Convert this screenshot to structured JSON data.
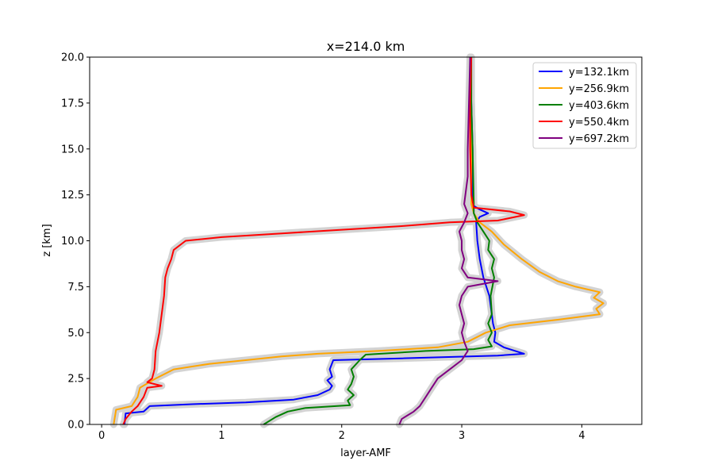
{
  "chart_data": {
    "type": "line",
    "title": "x=214.0 km",
    "xlabel": "layer-AMF",
    "ylabel": "z [km]",
    "xlim": [
      -0.1,
      4.5
    ],
    "ylim": [
      0,
      20
    ],
    "xticks": [
      0,
      1,
      2,
      3,
      4
    ],
    "yticks": [
      0.0,
      2.5,
      5.0,
      7.5,
      10.0,
      12.5,
      15.0,
      17.5,
      20.0
    ],
    "grid": false,
    "legend_position": "top-right",
    "shading": "light gray uncertainty band around each profile",
    "series": [
      {
        "name": "y=132.1km",
        "color": "#0000ff",
        "points": [
          [
            0.19,
            0.0
          ],
          [
            0.2,
            0.6
          ],
          [
            0.35,
            0.7
          ],
          [
            0.4,
            1.0
          ],
          [
            0.75,
            1.1
          ],
          [
            1.2,
            1.2
          ],
          [
            1.6,
            1.35
          ],
          [
            1.8,
            1.6
          ],
          [
            1.9,
            1.9
          ],
          [
            1.92,
            2.1
          ],
          [
            1.88,
            2.4
          ],
          [
            1.92,
            2.6
          ],
          [
            1.9,
            3.0
          ],
          [
            1.93,
            3.5
          ],
          [
            2.5,
            3.6
          ],
          [
            3.3,
            3.75
          ],
          [
            3.52,
            3.85
          ],
          [
            3.35,
            4.2
          ],
          [
            3.27,
            4.5
          ],
          [
            3.28,
            5.0
          ],
          [
            3.26,
            5.5
          ],
          [
            3.25,
            6.0
          ],
          [
            3.23,
            7.0
          ],
          [
            3.18,
            8.0
          ],
          [
            3.15,
            9.0
          ],
          [
            3.13,
            10.0
          ],
          [
            3.12,
            11.0
          ],
          [
            3.15,
            11.3
          ],
          [
            3.22,
            11.5
          ],
          [
            3.15,
            11.7
          ],
          [
            3.1,
            11.9
          ],
          [
            3.09,
            12.5
          ],
          [
            3.09,
            15.0
          ],
          [
            3.08,
            17.5
          ],
          [
            3.07,
            20.0
          ]
        ]
      },
      {
        "name": "y=256.9km",
        "color": "#ffa500",
        "points": [
          [
            0.1,
            0.0
          ],
          [
            0.12,
            0.8
          ],
          [
            0.25,
            1.0
          ],
          [
            0.3,
            1.5
          ],
          [
            0.32,
            2.0
          ],
          [
            0.45,
            2.5
          ],
          [
            0.6,
            3.0
          ],
          [
            0.9,
            3.3
          ],
          [
            1.2,
            3.5
          ],
          [
            1.5,
            3.7
          ],
          [
            1.8,
            3.85
          ],
          [
            2.3,
            4.0
          ],
          [
            2.8,
            4.2
          ],
          [
            3.05,
            4.5
          ],
          [
            3.2,
            5.0
          ],
          [
            3.4,
            5.4
          ],
          [
            3.8,
            5.7
          ],
          [
            4.15,
            6.0
          ],
          [
            4.12,
            6.3
          ],
          [
            4.18,
            6.6
          ],
          [
            4.1,
            6.9
          ],
          [
            4.15,
            7.2
          ],
          [
            3.95,
            7.5
          ],
          [
            3.8,
            7.8
          ],
          [
            3.65,
            8.3
          ],
          [
            3.5,
            9.0
          ],
          [
            3.35,
            9.8
          ],
          [
            3.25,
            10.5
          ],
          [
            3.15,
            11.0
          ],
          [
            3.1,
            11.5
          ],
          [
            3.08,
            12.0
          ],
          [
            3.08,
            15.0
          ],
          [
            3.07,
            17.5
          ],
          [
            3.07,
            20.0
          ]
        ]
      },
      {
        "name": "y=403.6km",
        "color": "#008000",
        "points": [
          [
            1.35,
            0.0
          ],
          [
            1.45,
            0.4
          ],
          [
            1.55,
            0.7
          ],
          [
            1.7,
            0.9
          ],
          [
            2.07,
            1.05
          ],
          [
            2.05,
            1.3
          ],
          [
            2.1,
            1.6
          ],
          [
            2.05,
            1.9
          ],
          [
            2.08,
            2.2
          ],
          [
            2.1,
            2.6
          ],
          [
            2.08,
            3.0
          ],
          [
            2.15,
            3.5
          ],
          [
            2.2,
            3.8
          ],
          [
            2.7,
            4.0
          ],
          [
            3.1,
            4.1
          ],
          [
            3.25,
            4.25
          ],
          [
            3.22,
            4.6
          ],
          [
            3.25,
            5.0
          ],
          [
            3.22,
            5.5
          ],
          [
            3.25,
            6.0
          ],
          [
            3.24,
            7.0
          ],
          [
            3.27,
            8.0
          ],
          [
            3.25,
            8.5
          ],
          [
            3.27,
            9.0
          ],
          [
            3.22,
            9.5
          ],
          [
            3.23,
            10.0
          ],
          [
            3.18,
            10.5
          ],
          [
            3.13,
            11.0
          ],
          [
            3.1,
            11.5
          ],
          [
            3.1,
            12.0
          ],
          [
            3.09,
            15.0
          ],
          [
            3.08,
            17.5
          ],
          [
            3.08,
            20.0
          ]
        ]
      },
      {
        "name": "y=550.4km",
        "color": "#ff0000",
        "points": [
          [
            0.18,
            0.0
          ],
          [
            0.2,
            0.3
          ],
          [
            0.25,
            0.7
          ],
          [
            0.3,
            1.0
          ],
          [
            0.35,
            1.5
          ],
          [
            0.38,
            2.0
          ],
          [
            0.5,
            2.1
          ],
          [
            0.38,
            2.3
          ],
          [
            0.42,
            2.5
          ],
          [
            0.44,
            3.0
          ],
          [
            0.45,
            4.0
          ],
          [
            0.48,
            5.0
          ],
          [
            0.5,
            6.0
          ],
          [
            0.52,
            7.0
          ],
          [
            0.53,
            8.0
          ],
          [
            0.55,
            8.5
          ],
          [
            0.58,
            9.0
          ],
          [
            0.6,
            9.5
          ],
          [
            0.7,
            10.0
          ],
          [
            1.0,
            10.2
          ],
          [
            1.5,
            10.4
          ],
          [
            2.0,
            10.6
          ],
          [
            2.5,
            10.8
          ],
          [
            2.9,
            11.0
          ],
          [
            3.3,
            11.1
          ],
          [
            3.52,
            11.4
          ],
          [
            3.4,
            11.6
          ],
          [
            3.1,
            11.8
          ],
          [
            3.08,
            12.5
          ],
          [
            3.07,
            15.0
          ],
          [
            3.07,
            17.5
          ],
          [
            3.08,
            20.0
          ]
        ]
      },
      {
        "name": "y=697.2km",
        "color": "#800080",
        "points": [
          [
            2.48,
            0.0
          ],
          [
            2.5,
            0.3
          ],
          [
            2.55,
            0.5
          ],
          [
            2.6,
            0.7
          ],
          [
            2.65,
            1.0
          ],
          [
            2.7,
            1.5
          ],
          [
            2.75,
            2.0
          ],
          [
            2.8,
            2.5
          ],
          [
            2.9,
            3.0
          ],
          [
            3.0,
            3.5
          ],
          [
            3.05,
            4.0
          ],
          [
            3.02,
            4.5
          ],
          [
            3.0,
            5.0
          ],
          [
            3.02,
            5.5
          ],
          [
            3.0,
            6.0
          ],
          [
            2.98,
            6.5
          ],
          [
            3.0,
            7.0
          ],
          [
            3.05,
            7.5
          ],
          [
            3.3,
            7.8
          ],
          [
            3.05,
            8.0
          ],
          [
            3.0,
            8.5
          ],
          [
            3.02,
            9.0
          ],
          [
            3.0,
            9.5
          ],
          [
            3.0,
            10.0
          ],
          [
            2.98,
            10.5
          ],
          [
            3.02,
            11.0
          ],
          [
            3.05,
            11.5
          ],
          [
            3.02,
            12.0
          ],
          [
            3.03,
            12.5
          ],
          [
            3.05,
            13.5
          ],
          [
            3.05,
            15.0
          ],
          [
            3.06,
            17.5
          ],
          [
            3.07,
            20.0
          ]
        ]
      }
    ]
  }
}
